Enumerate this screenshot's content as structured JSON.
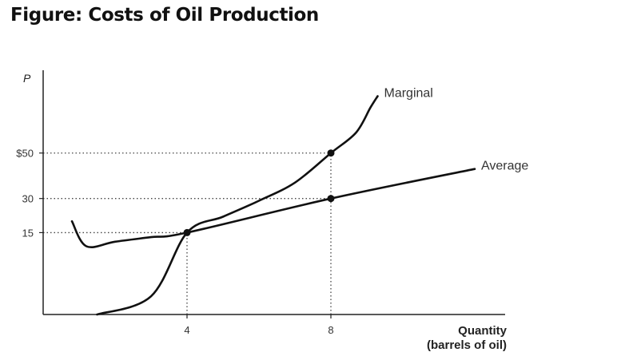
{
  "figure_title": "Figure: Costs of Oil Production",
  "chart_data": {
    "type": "line",
    "title": "Figure: Costs of Oil Production",
    "ylabel": "P",
    "xlabel_line1": "Quantity",
    "xlabel_line2": "(barrels of oil)",
    "xlim": [
      0,
      12.8
    ],
    "ylim": [
      -21,
      85
    ],
    "x_ticks": [
      {
        "value": 4,
        "label": "4"
      },
      {
        "value": 8,
        "label": "8"
      }
    ],
    "y_ticks": [
      {
        "value": 50,
        "label": "$50"
      },
      {
        "value": 30,
        "label": "30"
      },
      {
        "value": 15,
        "label": "15"
      }
    ],
    "series": [
      {
        "name": "Marginal",
        "x": [
          1.5,
          3,
          4,
          5,
          6,
          7,
          8,
          8.7,
          9.1,
          9.3
        ],
        "y": [
          -21,
          -13,
          15,
          22,
          29,
          37,
          50,
          59,
          70,
          75
        ]
      },
      {
        "name": "Average",
        "x": [
          0.8,
          1.2,
          2,
          3,
          4,
          8,
          12
        ],
        "y": [
          20,
          9,
          11,
          13,
          15,
          30,
          43
        ]
      }
    ],
    "points": [
      {
        "x": 4,
        "y": 15
      },
      {
        "x": 8,
        "y": 30
      },
      {
        "x": 8,
        "y": 50
      }
    ],
    "guides": [
      {
        "y": 50,
        "x_to": 8
      },
      {
        "y": 30,
        "x_to": 8
      },
      {
        "y": 15,
        "x_to": 4
      },
      {
        "x": 4,
        "y_to": 15
      },
      {
        "x": 8,
        "y_to": 50
      }
    ]
  }
}
